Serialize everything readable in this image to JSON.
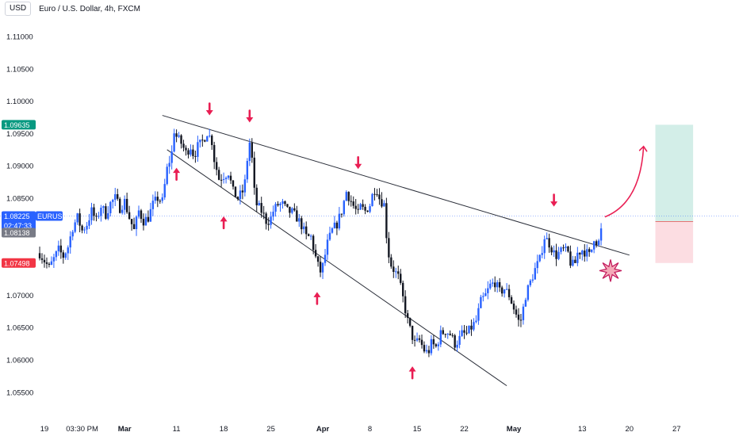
{
  "header": {
    "currency_button": "USD",
    "title": "Euro / U.S. Dollar, 4h, FXCM"
  },
  "colors": {
    "up": "#2962ff",
    "down": "#131722",
    "arrow": "#e91e53",
    "target_zone": "#d3eee8",
    "stop_zone": "#fcdde2",
    "target_badge": "#089981",
    "stop_badge": "#f23645",
    "price_badge": "#2962ff",
    "prev_badge": "#787b86",
    "trendline": "#2a2e39"
  },
  "chart_data": {
    "type": "candlestick",
    "symbol": "EURUSD",
    "title": "Euro / U.S. Dollar, 4h, FXCM",
    "y_ticks": [
      "1.11000",
      "1.10500",
      "1.10000",
      "1.09500",
      "1.09000",
      "1.08500",
      "1.08000",
      "1.07500",
      "1.07000",
      "1.06500",
      "1.06000",
      "1.05500"
    ],
    "ylim": [
      1.0513,
      1.114
    ],
    "x_ticks": [
      {
        "label": "19",
        "t": 0
      },
      {
        "label": "03:30 PM",
        "t": 8
      },
      {
        "label": "Mar",
        "t": 17
      },
      {
        "label": "11",
        "t": 28
      },
      {
        "label": "18",
        "t": 38
      },
      {
        "label": "25",
        "t": 48
      },
      {
        "label": "Apr",
        "t": 59
      },
      {
        "label": "8",
        "t": 69
      },
      {
        "label": "15",
        "t": 79
      },
      {
        "label": "22",
        "t": 89
      },
      {
        "label": "May",
        "t": 99.5
      },
      {
        "label": "13",
        "t": 114
      },
      {
        "label": "20",
        "t": 124
      },
      {
        "label": "27",
        "t": 134
      }
    ],
    "price_path": [
      [
        -1.0,
        1.0765
      ],
      [
        1,
        1.0742
      ],
      [
        3,
        1.077
      ],
      [
        4,
        1.076
      ],
      [
        5,
        1.0775
      ],
      [
        6,
        1.0805
      ],
      [
        7,
        1.082
      ],
      [
        8,
        1.08
      ],
      [
        9,
        1.081
      ],
      [
        10,
        1.083
      ],
      [
        11,
        1.0815
      ],
      [
        12,
        1.0838
      ],
      [
        13,
        1.0825
      ],
      [
        14,
        1.0842
      ],
      [
        15,
        1.085
      ],
      [
        16,
        1.0835
      ],
      [
        17,
        1.0845
      ],
      [
        18,
        1.082
      ],
      [
        19,
        1.08
      ],
      [
        20,
        1.083
      ],
      [
        21,
        1.0815
      ],
      [
        22,
        1.082
      ],
      [
        23,
        1.084
      ],
      [
        24,
        1.085
      ],
      [
        25,
        1.0845
      ],
      [
        26,
        1.0895
      ],
      [
        27,
        1.092
      ],
      [
        27.5,
        1.0955
      ],
      [
        28,
        1.0945
      ],
      [
        29,
        1.0935
      ],
      [
        30,
        1.092
      ],
      [
        31,
        1.093
      ],
      [
        31.7,
        1.0915
      ],
      [
        32.5,
        1.093
      ],
      [
        33.3,
        1.0935
      ],
      [
        34.5,
        1.0952
      ],
      [
        35.5,
        1.0938
      ],
      [
        36,
        1.091
      ],
      [
        37,
        1.088
      ],
      [
        38,
        1.0885
      ],
      [
        39,
        1.089
      ],
      [
        40,
        1.086
      ],
      [
        41,
        1.085
      ],
      [
        42,
        1.086
      ],
      [
        42.7,
        1.088
      ],
      [
        43.3,
        1.094
      ],
      [
        43.8,
        1.093
      ],
      [
        44.5,
        1.086
      ],
      [
        45,
        1.084
      ],
      [
        46,
        1.083
      ],
      [
        47,
        1.0815
      ],
      [
        47.8,
        1.0815
      ],
      [
        48.5,
        1.083
      ],
      [
        49.5,
        1.084
      ],
      [
        50.5,
        1.084
      ],
      [
        51.5,
        1.083
      ],
      [
        52.5,
        1.0828
      ],
      [
        53.5,
        1.082
      ],
      [
        54.5,
        1.0808
      ],
      [
        55.5,
        1.079
      ],
      [
        56.5,
        1.079
      ],
      [
        57.5,
        1.0758
      ],
      [
        58.4,
        1.0735
      ],
      [
        59,
        1.0745
      ],
      [
        60,
        1.078
      ],
      [
        61,
        1.08
      ],
      [
        62,
        1.081
      ],
      [
        63,
        1.083
      ],
      [
        64,
        1.086
      ],
      [
        64.7,
        1.085
      ],
      [
        65.5,
        1.0838
      ],
      [
        66.5,
        1.0825
      ],
      [
        67,
        1.0836
      ],
      [
        68,
        1.083
      ],
      [
        69,
        1.084
      ],
      [
        69.7,
        1.086
      ],
      [
        70.3,
        1.0868
      ],
      [
        71,
        1.085
      ],
      [
        72,
        1.084
      ],
      [
        72.7,
        1.0775
      ],
      [
        73.3,
        1.075
      ],
      [
        74,
        1.074
      ],
      [
        75,
        1.0728
      ],
      [
        76,
        1.0695
      ],
      [
        77,
        1.066
      ],
      [
        77.8,
        1.064
      ],
      [
        78.5,
        1.0625
      ],
      [
        79.5,
        1.063
      ],
      [
        80.5,
        1.0615
      ],
      [
        81.3,
        1.061
      ],
      [
        82,
        1.0625
      ],
      [
        83,
        1.062
      ],
      [
        84,
        1.064
      ],
      [
        85,
        1.0645
      ],
      [
        86,
        1.064
      ],
      [
        87,
        1.0625
      ],
      [
        87.8,
        1.063
      ],
      [
        88.5,
        1.064
      ],
      [
        89.5,
        1.064
      ],
      [
        90.5,
        1.065
      ],
      [
        91.5,
        1.066
      ],
      [
        92.5,
        1.069
      ],
      [
        93.5,
        1.07
      ],
      [
        94.5,
        1.0715
      ],
      [
        95.5,
        1.072
      ],
      [
        96.5,
        1.0705
      ],
      [
        97.5,
        1.071
      ],
      [
        98.5,
        1.07
      ],
      [
        99.5,
        1.068
      ],
      [
        100.5,
        1.066
      ],
      [
        101,
        1.0662
      ],
      [
        101.5,
        1.068
      ],
      [
        102,
        1.07
      ],
      [
        103,
        1.072
      ],
      [
        104,
        1.074
      ],
      [
        105,
        1.0755
      ],
      [
        106,
        1.079
      ],
      [
        107,
        1.078
      ],
      [
        107.7,
        1.077
      ],
      [
        108.3,
        1.076
      ],
      [
        109,
        1.0765
      ],
      [
        110,
        1.077
      ],
      [
        111,
        1.0765
      ],
      [
        111.7,
        1.0745
      ],
      [
        112.5,
        1.075
      ],
      [
        113,
        1.0765
      ],
      [
        114,
        1.077
      ],
      [
        115,
        1.0765
      ],
      [
        115.7,
        1.076
      ],
      [
        116.5,
        1.079
      ],
      [
        117.3,
        1.078
      ],
      [
        117.8,
        1.0785
      ],
      [
        118.3,
        1.0822
      ]
    ],
    "annotations": {
      "resistance_line": {
        "from": {
          "t": 25,
          "price": 1.0978
        },
        "to": {
          "t": 124,
          "price": 1.0762
        }
      },
      "support_line": {
        "from": {
          "t": 26,
          "price": 1.0925
        },
        "to": {
          "t": 98,
          "price": 1.056
        }
      },
      "down_arrows": [
        {
          "t": 35,
          "price": 1.0978
        },
        {
          "t": 43.5,
          "price": 1.0967
        },
        {
          "t": 66.5,
          "price": 1.0895
        },
        {
          "t": 108,
          "price": 1.0837
        }
      ],
      "up_arrows": [
        {
          "t": 28,
          "price": 1.0897
        },
        {
          "t": 38,
          "price": 1.0822
        },
        {
          "t": 57.8,
          "price": 1.0705
        },
        {
          "t": 78,
          "price": 1.059
        }
      ],
      "position": {
        "t_start": 129.5,
        "t_end": 137.5,
        "entry": 1.08138,
        "target": 1.09635,
        "stop": 1.07498
      },
      "projection_arrow": {
        "from": {
          "t": 118.8,
          "price": 1.0821
        },
        "to": {
          "t": 127,
          "price": 1.093
        }
      },
      "star": {
        "t": 120,
        "price": 1.0738
      }
    },
    "price_labels": [
      {
        "text": "1.09635",
        "price": 1.09635,
        "kind": "target"
      },
      {
        "text": "EURUSD",
        "value": "1.08225",
        "countdown": "02:47:33",
        "price": 1.08225,
        "kind": "current"
      },
      {
        "text": "1.08138",
        "price": 1.08138,
        "kind": "prev"
      },
      {
        "text": "1.07498",
        "price": 1.07498,
        "kind": "stop"
      }
    ]
  }
}
